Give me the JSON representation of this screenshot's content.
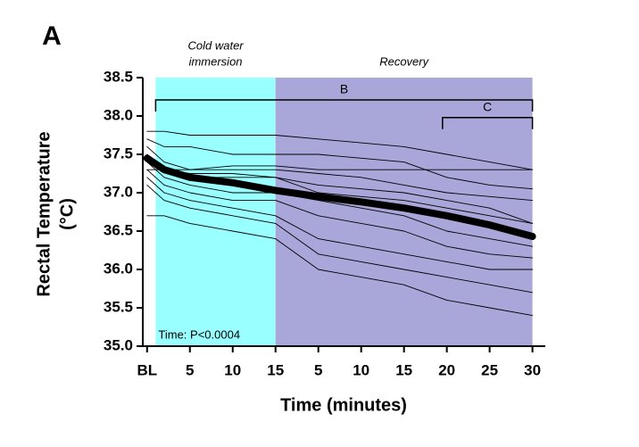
{
  "chart_data": {
    "type": "line",
    "panel_label": "A",
    "xlabel": "Time (minutes)",
    "ylabel": [
      "Rectal Temperature",
      "(°C)"
    ],
    "annotation": "Time: P<0.0004",
    "regions": [
      {
        "label": [
          "Cold water",
          "immersion"
        ],
        "start": 1,
        "end": 15,
        "color": "#99ffff"
      },
      {
        "label": [
          "Recovery"
        ],
        "start": 15,
        "end": 45,
        "color": "#a9a6d9"
      }
    ],
    "brackets": [
      {
        "label": "B",
        "start": 1,
        "end": 45,
        "y": 38.21
      },
      {
        "label": "C",
        "start": 34.5,
        "end": 45,
        "y": 37.98
      }
    ],
    "x": [
      0,
      2,
      5,
      10,
      15,
      20,
      25,
      30,
      35,
      40,
      45
    ],
    "series": [
      {
        "color": "#000000",
        "values": [
          37.8,
          37.8,
          37.75,
          37.75,
          37.75,
          37.7,
          37.65,
          37.6,
          37.5,
          37.4,
          37.3
        ]
      },
      {
        "color": "#000000",
        "values": [
          37.7,
          37.6,
          37.6,
          37.5,
          37.5,
          37.5,
          37.45,
          37.4,
          37.2,
          37.1,
          37.05
        ]
      },
      {
        "color": "#000000",
        "values": [
          37.3,
          37.3,
          37.3,
          37.35,
          37.35,
          37.3,
          37.3,
          37.3,
          37.3,
          37.3,
          37.3
        ]
      },
      {
        "color": "#000000",
        "values": [
          37.6,
          37.4,
          37.3,
          37.3,
          37.3,
          37.25,
          37.2,
          37.1,
          37.0,
          36.95,
          36.9
        ]
      },
      {
        "color": "#000000",
        "values": [
          37.5,
          37.3,
          37.25,
          37.25,
          37.2,
          37.1,
          37.05,
          37.0,
          36.9,
          36.8,
          36.6
        ]
      },
      {
        "color": "#000000",
        "values": [
          37.4,
          37.3,
          37.2,
          37.2,
          37.2,
          37.0,
          36.95,
          36.9,
          36.8,
          36.7,
          36.6
        ]
      },
      {
        "color": "#000000",
        "values": [
          37.4,
          37.2,
          37.1,
          37.0,
          37.0,
          36.9,
          36.8,
          36.7,
          36.5,
          36.4,
          36.3
        ]
      },
      {
        "color": "#000000",
        "values": [
          37.3,
          37.1,
          37.0,
          36.9,
          36.9,
          36.7,
          36.6,
          36.5,
          36.3,
          36.2,
          36.15
        ]
      },
      {
        "color": "#000000",
        "values": [
          37.2,
          37.0,
          36.9,
          36.8,
          36.7,
          36.4,
          36.3,
          36.2,
          36.1,
          36.0,
          36.0
        ]
      },
      {
        "color": "#000000",
        "values": [
          37.1,
          36.9,
          36.8,
          36.7,
          36.6,
          36.2,
          36.1,
          36.0,
          35.9,
          35.8,
          35.7
        ]
      },
      {
        "color": "#000000",
        "values": [
          36.7,
          36.7,
          36.6,
          36.5,
          36.4,
          36.0,
          35.9,
          35.8,
          35.6,
          35.5,
          35.4
        ]
      },
      {
        "color": "#000000",
        "thick": true,
        "values": [
          37.45,
          37.3,
          37.2,
          37.13,
          37.03,
          36.95,
          36.88,
          36.8,
          36.7,
          36.58,
          36.43
        ]
      }
    ],
    "xlim": [
      -0.5,
      46.5
    ],
    "ylim": [
      35,
      38.5
    ],
    "xticks": [
      {
        "value": 0,
        "label": "BL"
      },
      5,
      10,
      15,
      {
        "value": 20,
        "label": "5"
      },
      {
        "value": 25,
        "label": "10"
      },
      {
        "value": 30,
        "label": "15"
      },
      {
        "value": 35,
        "label": "20"
      },
      {
        "value": 40,
        "label": "25"
      },
      {
        "value": 45,
        "label": "30"
      }
    ],
    "yticks": [
      {
        "value": 35,
        "label": "35.0"
      },
      35.5,
      {
        "value": 36,
        "label": "36.0"
      },
      36.5,
      {
        "value": 37,
        "label": "37.0"
      },
      37.5,
      {
        "value": 38,
        "label": "38.0"
      },
      38.5
    ]
  }
}
